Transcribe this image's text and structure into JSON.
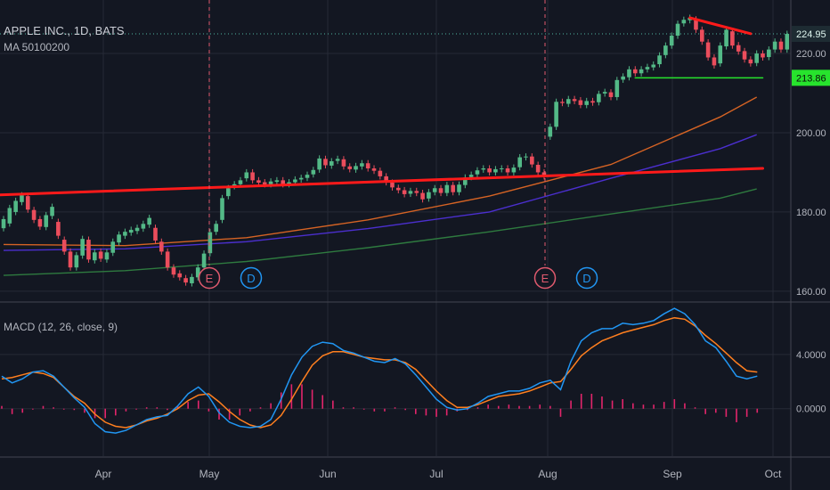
{
  "header": {
    "symbol_title": "APPLE INC., 1D, BATS",
    "ma_label": "MA 50100200",
    "macd_label": "MACD (12, 26, close, 9)"
  },
  "colors": {
    "background": "#131722",
    "grid": "#262a36",
    "candle_up": "#53b987",
    "candle_down": "#eb4d5c",
    "trendline": "#ff1a1a",
    "support_line": "#27e32d",
    "ma50": "#d56324",
    "ma100": "#4b2fcf",
    "ma200": "#2e7a3f",
    "macd_line": "#2196f3",
    "signal_line": "#ff7f1f",
    "histogram": "#e3256b",
    "earnings": "#e05a6e",
    "dividend": "#2196f3"
  },
  "chart_data": {
    "type": "candlestick",
    "title": "APPLE INC., 1D, BATS",
    "x_tick_labels": [
      "Apr",
      "May",
      "Jun",
      "Jul",
      "Aug",
      "Sep",
      "Oct"
    ],
    "y_tick_labels": [
      "160.00",
      "180.00",
      "200.00",
      "220.00"
    ],
    "ylim": [
      157.5,
      233.5
    ],
    "price_labels": {
      "last": "224.95",
      "support": "213.86"
    },
    "events": [
      {
        "label": "E",
        "date": "May 1"
      },
      {
        "label": "D",
        "date": "May 11"
      },
      {
        "label": "E",
        "date": "Jul 31"
      },
      {
        "label": "D",
        "date": "Aug 10"
      }
    ],
    "candles": [
      {
        "o": 175.9,
        "c": 178.2
      },
      {
        "o": 177.1,
        "c": 181.0
      },
      {
        "o": 180.0,
        "c": 182.8
      },
      {
        "o": 182.5,
        "c": 184.2
      },
      {
        "o": 184.0,
        "c": 180.6
      },
      {
        "o": 180.5,
        "c": 178.0
      },
      {
        "o": 178.2,
        "c": 176.3
      },
      {
        "o": 176.2,
        "c": 179.2
      },
      {
        "o": 179.0,
        "c": 181.3
      },
      {
        "o": 177.5,
        "c": 174.0
      },
      {
        "o": 173.0,
        "c": 170.0
      },
      {
        "o": 170.0,
        "c": 166.0
      },
      {
        "o": 166.0,
        "c": 169.1
      },
      {
        "o": 169.0,
        "c": 173.2
      },
      {
        "o": 173.0,
        "c": 168.0
      },
      {
        "o": 167.8,
        "c": 169.8
      },
      {
        "o": 170.0,
        "c": 168.2
      },
      {
        "o": 168.0,
        "c": 169.8
      },
      {
        "o": 169.7,
        "c": 172.5
      },
      {
        "o": 172.3,
        "c": 174.3
      },
      {
        "o": 174.0,
        "c": 175.0
      },
      {
        "o": 174.8,
        "c": 175.5
      },
      {
        "o": 175.2,
        "c": 176.0
      },
      {
        "o": 175.8,
        "c": 177.0
      },
      {
        "o": 176.8,
        "c": 178.5
      },
      {
        "o": 176.0,
        "c": 172.8
      },
      {
        "o": 172.5,
        "c": 170.0
      },
      {
        "o": 170.0,
        "c": 166.0
      },
      {
        "o": 166.0,
        "c": 164.2
      },
      {
        "o": 164.5,
        "c": 163.5
      },
      {
        "o": 163.3,
        "c": 162.2
      },
      {
        "o": 162.0,
        "c": 163.6
      },
      {
        "o": 163.5,
        "c": 166.0
      },
      {
        "o": 166.0,
        "c": 169.5
      },
      {
        "o": 169.6,
        "c": 174.9
      },
      {
        "o": 175.0,
        "c": 177.0
      },
      {
        "o": 178.0,
        "c": 183.5
      },
      {
        "o": 184.0,
        "c": 186.0
      },
      {
        "o": 186.5,
        "c": 187.0
      },
      {
        "o": 187.0,
        "c": 188.0
      },
      {
        "o": 188.5,
        "c": 190.0
      },
      {
        "o": 190.0,
        "c": 188.0
      },
      {
        "o": 188.0,
        "c": 187.4
      },
      {
        "o": 187.5,
        "c": 187.0
      },
      {
        "o": 187.0,
        "c": 187.7
      },
      {
        "o": 187.6,
        "c": 188.0
      },
      {
        "o": 188.0,
        "c": 187.0
      },
      {
        "o": 187.0,
        "c": 187.5
      },
      {
        "o": 187.5,
        "c": 188.2
      },
      {
        "o": 188.2,
        "c": 188.6
      },
      {
        "o": 188.6,
        "c": 189.4
      },
      {
        "o": 189.5,
        "c": 190.6
      },
      {
        "o": 190.7,
        "c": 193.5
      },
      {
        "o": 193.4,
        "c": 191.8
      },
      {
        "o": 191.7,
        "c": 192.8
      },
      {
        "o": 192.9,
        "c": 193.4
      },
      {
        "o": 193.3,
        "c": 191.5
      },
      {
        "o": 191.5,
        "c": 190.8
      },
      {
        "o": 190.7,
        "c": 191.6
      },
      {
        "o": 191.5,
        "c": 192.3
      },
      {
        "o": 192.3,
        "c": 191.0
      },
      {
        "o": 191.0,
        "c": 190.4
      },
      {
        "o": 190.4,
        "c": 189.0
      },
      {
        "o": 189.0,
        "c": 187.5
      },
      {
        "o": 187.4,
        "c": 186.2
      },
      {
        "o": 186.1,
        "c": 185.5
      },
      {
        "o": 185.5,
        "c": 184.5
      },
      {
        "o": 184.6,
        "c": 185.3
      },
      {
        "o": 185.3,
        "c": 184.8
      },
      {
        "o": 184.8,
        "c": 183.2
      },
      {
        "o": 183.4,
        "c": 185.0
      },
      {
        "o": 185.0,
        "c": 186.0
      },
      {
        "o": 186.0,
        "c": 184.8
      },
      {
        "o": 184.8,
        "c": 186.8
      },
      {
        "o": 186.8,
        "c": 185.0
      },
      {
        "o": 185.0,
        "c": 186.9
      },
      {
        "o": 186.8,
        "c": 188.7
      },
      {
        "o": 188.8,
        "c": 189.4
      },
      {
        "o": 189.5,
        "c": 190.5
      },
      {
        "o": 190.7,
        "c": 191.0
      },
      {
        "o": 191.0,
        "c": 190.0
      },
      {
        "o": 190.0,
        "c": 190.8
      },
      {
        "o": 190.8,
        "c": 191.0
      },
      {
        "o": 191.0,
        "c": 190.0
      },
      {
        "o": 190.0,
        "c": 191.2
      },
      {
        "o": 191.3,
        "c": 193.8
      },
      {
        "o": 193.8,
        "c": 194.0
      },
      {
        "o": 194.0,
        "c": 192.0
      },
      {
        "o": 191.9,
        "c": 190.0
      },
      {
        "o": 190.0,
        "c": 189.0
      },
      {
        "o": 199.0,
        "c": 201.5
      },
      {
        "o": 201.5,
        "c": 207.8
      },
      {
        "o": 207.8,
        "c": 207.5
      },
      {
        "o": 207.3,
        "c": 208.5
      },
      {
        "o": 208.5,
        "c": 208.0
      },
      {
        "o": 208.2,
        "c": 207.0
      },
      {
        "o": 207.0,
        "c": 208.0
      },
      {
        "o": 208.0,
        "c": 207.6
      },
      {
        "o": 207.7,
        "c": 209.8
      },
      {
        "o": 209.9,
        "c": 210.3
      },
      {
        "o": 210.2,
        "c": 209.0
      },
      {
        "o": 209.0,
        "c": 213.3
      },
      {
        "o": 213.4,
        "c": 214.2
      },
      {
        "o": 214.0,
        "c": 216.0
      },
      {
        "o": 216.0,
        "c": 215.0
      },
      {
        "o": 215.0,
        "c": 216.0
      },
      {
        "o": 216.0,
        "c": 216.6
      },
      {
        "o": 216.5,
        "c": 217.2
      },
      {
        "o": 217.3,
        "c": 219.5
      },
      {
        "o": 219.6,
        "c": 222.0
      },
      {
        "o": 222.0,
        "c": 224.5
      },
      {
        "o": 224.5,
        "c": 227.5
      },
      {
        "o": 227.6,
        "c": 228.5
      },
      {
        "o": 228.4,
        "c": 229.0
      },
      {
        "o": 228.6,
        "c": 226.0
      },
      {
        "o": 226.0,
        "c": 223.0
      },
      {
        "o": 222.8,
        "c": 219.0
      },
      {
        "o": 219.0,
        "c": 217.0
      },
      {
        "o": 217.5,
        "c": 222.0
      },
      {
        "o": 221.8,
        "c": 226.0
      },
      {
        "o": 225.6,
        "c": 222.0
      },
      {
        "o": 222.1,
        "c": 220.5
      },
      {
        "o": 220.6,
        "c": 218.5
      },
      {
        "o": 218.5,
        "c": 217.5
      },
      {
        "o": 217.6,
        "c": 220.0
      },
      {
        "o": 220.0,
        "c": 219.0
      },
      {
        "o": 219.1,
        "c": 221.0
      },
      {
        "o": 221.0,
        "c": 223.0
      },
      {
        "o": 223.0,
        "c": 221.0
      },
      {
        "o": 221.0,
        "c": 224.95
      }
    ],
    "ma_series": [
      {
        "key": "ma50",
        "points": [
          [
            0,
            171.8
          ],
          [
            20,
            171.5
          ],
          [
            40,
            173.5
          ],
          [
            60,
            178.0
          ],
          [
            80,
            184.0
          ],
          [
            100,
            192.0
          ],
          [
            118,
            204.0
          ],
          [
            124,
            209.0
          ]
        ]
      },
      {
        "key": "ma100",
        "points": [
          [
            0,
            170.3
          ],
          [
            20,
            170.7
          ],
          [
            40,
            172.5
          ],
          [
            60,
            175.8
          ],
          [
            80,
            180.0
          ],
          [
            100,
            188.5
          ],
          [
            118,
            196.0
          ],
          [
            124,
            199.5
          ]
        ]
      },
      {
        "key": "ma200",
        "points": [
          [
            0,
            164.0
          ],
          [
            20,
            165.2
          ],
          [
            40,
            167.5
          ],
          [
            60,
            171.0
          ],
          [
            80,
            175.0
          ],
          [
            100,
            179.5
          ],
          [
            118,
            183.5
          ],
          [
            124,
            185.8
          ]
        ]
      }
    ],
    "annotations": [
      {
        "kind": "trendline",
        "points": [
          [
            -1,
            184.3
          ],
          [
            125,
            191.0
          ]
        ]
      },
      {
        "kind": "trendline",
        "points": [
          [
            113,
            229.0
          ],
          [
            123,
            225.0
          ]
        ]
      },
      {
        "kind": "support",
        "points": [
          [
            104,
            213.86
          ],
          [
            125,
            213.86
          ]
        ]
      }
    ],
    "macd": {
      "label": "MACD (12, 26, close, 9)",
      "y_tick_labels": [
        "0.0000",
        "4.0000"
      ],
      "ylim": [
        -3.5,
        7.8
      ],
      "macd_line": [
        2.4,
        1.9,
        2.2,
        2.7,
        2.8,
        2.4,
        1.6,
        0.8,
        0.1,
        -1.1,
        -1.7,
        -1.8,
        -1.6,
        -1.2,
        -0.8,
        -0.6,
        -0.5,
        0.2,
        1.1,
        1.6,
        0.9,
        -0.3,
        -1.0,
        -1.3,
        -1.4,
        -1.3,
        -0.8,
        0.7,
        2.5,
        3.8,
        4.6,
        4.9,
        4.8,
        4.3,
        4.1,
        3.8,
        3.5,
        3.4,
        3.7,
        3.3,
        2.5,
        1.6,
        0.7,
        0.1,
        -0.1,
        0.0,
        0.4,
        0.9,
        1.1,
        1.3,
        1.3,
        1.5,
        1.9,
        2.1,
        1.4,
        3.5,
        5.0,
        5.6,
        5.9,
        5.9,
        6.3,
        6.2,
        6.3,
        6.5,
        7.0,
        7.4,
        7.0,
        6.2,
        5.0,
        4.5,
        3.5,
        2.4,
        2.2,
        2.4
      ],
      "signal_line": [
        2.2,
        2.3,
        2.5,
        2.7,
        2.6,
        2.3,
        1.6,
        0.9,
        0.4,
        -0.4,
        -1.0,
        -1.3,
        -1.4,
        -1.2,
        -0.9,
        -0.7,
        -0.4,
        0.0,
        0.6,
        1.0,
        1.1,
        0.5,
        -0.2,
        -0.8,
        -1.2,
        -1.4,
        -1.2,
        -0.5,
        0.7,
        2.0,
        3.2,
        3.9,
        4.2,
        4.2,
        4.0,
        3.8,
        3.7,
        3.6,
        3.6,
        3.4,
        2.9,
        2.1,
        1.3,
        0.6,
        0.1,
        0.1,
        0.3,
        0.6,
        0.9,
        1.0,
        1.1,
        1.3,
        1.6,
        1.9,
        2.0,
        2.9,
        3.9,
        4.5,
        5.0,
        5.3,
        5.6,
        5.8,
        6.0,
        6.2,
        6.5,
        6.7,
        6.6,
        6.1,
        5.4,
        4.8,
        4.1,
        3.4,
        2.8,
        2.7
      ],
      "histogram": [
        0.2,
        -0.4,
        -0.3,
        0.0,
        0.2,
        0.1,
        0.0,
        -0.1,
        -0.3,
        -0.7,
        -0.7,
        -0.5,
        -0.2,
        0.0,
        0.1,
        0.1,
        -0.1,
        0.2,
        0.5,
        0.6,
        -0.2,
        -0.8,
        -0.8,
        -0.5,
        -0.2,
        0.1,
        0.4,
        1.2,
        1.8,
        1.8,
        1.4,
        1.0,
        0.6,
        0.1,
        0.1,
        0.0,
        -0.2,
        -0.2,
        0.1,
        -0.1,
        -0.4,
        -0.5,
        -0.6,
        -0.5,
        -0.2,
        -0.1,
        0.1,
        0.3,
        0.2,
        0.3,
        0.2,
        0.2,
        0.3,
        0.2,
        -0.6,
        0.6,
        1.1,
        1.1,
        0.9,
        0.6,
        0.7,
        0.4,
        0.3,
        0.3,
        0.5,
        0.7,
        0.4,
        0.1,
        -0.4,
        -0.3,
        -0.6,
        -1.0,
        -0.6,
        -0.3
      ]
    }
  }
}
